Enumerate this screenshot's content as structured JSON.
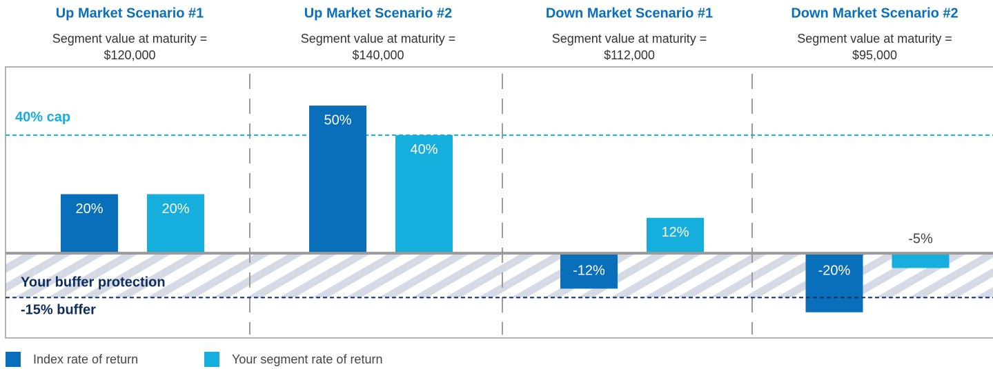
{
  "chart_data": {
    "type": "bar",
    "categories": [
      "Up Market Scenario #1",
      "Up Market Scenario #2",
      "Down Market Scenario #1",
      "Down Market Scenario #2"
    ],
    "notes": [
      "Segment value at maturity =",
      "Segment value at maturity =",
      "Segment value at maturity =",
      "Segment value at maturity ="
    ],
    "maturity_values": [
      "$120,000",
      "$140,000",
      "$112,000",
      "$95,000"
    ],
    "series": [
      {
        "name": "Index rate of return",
        "color": "#0a6fba",
        "values": [
          20,
          50,
          -12,
          -20
        ],
        "value_labels": [
          "20%",
          "50%",
          "-12%",
          "-20%"
        ]
      },
      {
        "name": "Your segment rate of return",
        "color": "#16aedc",
        "values": [
          20,
          40,
          12,
          -5
        ],
        "value_labels": [
          "20%",
          "40%",
          "12%",
          "-5%"
        ]
      }
    ],
    "cap": {
      "value": 40,
      "label": "40% cap"
    },
    "buffer": {
      "value": -15,
      "label": "-15% buffer"
    },
    "buffer_note": "Your buffer protection",
    "ylim": [
      -28.7,
      63.1
    ]
  }
}
